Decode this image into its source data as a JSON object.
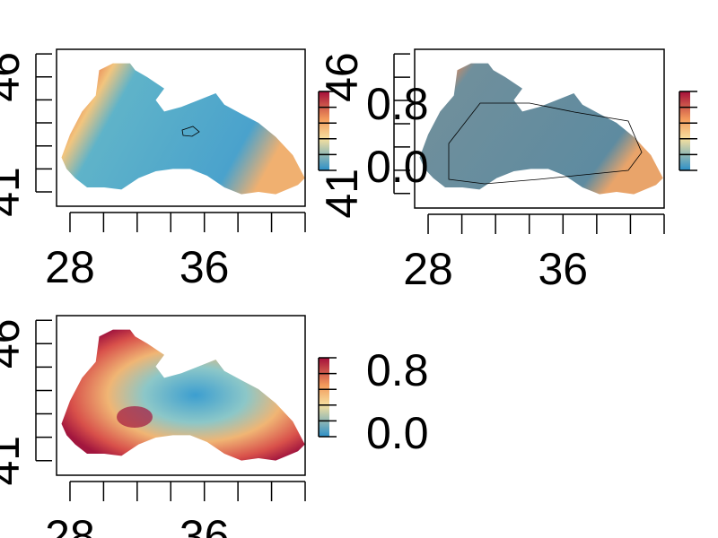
{
  "panels": [
    {
      "xlim": [
        27.2,
        42
      ],
      "ylim": [
        40.375,
        47.2
      ],
      "xticks": [
        28,
        36
      ],
      "xminor": [
        30,
        32,
        34,
        38,
        40,
        42
      ],
      "yticks": [
        41,
        46
      ],
      "yminor": [
        42,
        43,
        44,
        45,
        47
      ],
      "zlim": [
        0,
        1
      ],
      "zticks": [
        {
          "value": 0,
          "label": "0.0"
        },
        0.8
      ],
      "zminor": [
        0.2,
        0.4,
        0.6,
        1
      ]
    },
    {
      "xlim": [
        27.2,
        42
      ],
      "ylim": [
        40.375,
        47.2
      ],
      "xticks": [
        28,
        36
      ],
      "xminor": [
        30,
        32,
        34,
        38,
        40,
        42
      ],
      "yticks": [
        41,
        46
      ],
      "yminor": [
        42,
        43,
        44,
        45,
        47
      ],
      "zlim": [
        0,
        1
      ],
      "zticks": [],
      "zminor": [
        0,
        0.2,
        0.4,
        0.6,
        0.8,
        1
      ]
    },
    {
      "xlim": [
        27.2,
        42
      ],
      "ylim": [
        40.375,
        47.2
      ],
      "xticks": [
        28,
        36
      ],
      "xminor": [
        30,
        32,
        34,
        38,
        40,
        42
      ],
      "yticks": [
        41,
        46
      ],
      "yminor": [
        42,
        43,
        44,
        45,
        47
      ],
      "zlim": [
        0,
        1
      ],
      "zticks": [
        {
          "value": 0,
          "label": "0.0"
        },
        0.8
      ],
      "zminor": [
        0.2,
        0.4,
        0.6,
        1
      ]
    }
  ]
}
